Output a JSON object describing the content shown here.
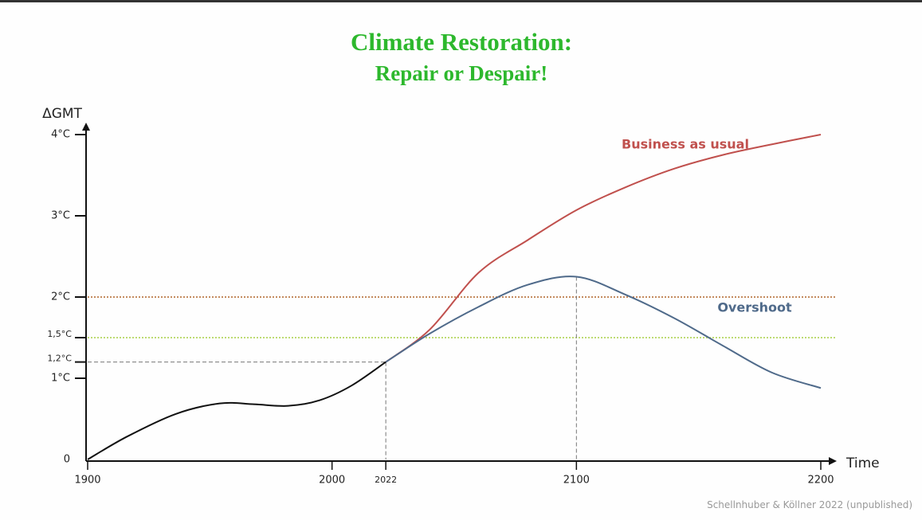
{
  "chart_data": {
    "type": "line",
    "title": "Climate Restoration:",
    "subtitle": "Repair or Despair!",
    "y_label": "ΔGMT",
    "x_label": "Time",
    "source": "Schellnhuber & Köllner 2022 (unpublished)",
    "xlim": [
      1900,
      2200
    ],
    "ylim": [
      0,
      4
    ],
    "xticks": [
      1900,
      2000,
      2022,
      2100,
      2200
    ],
    "yticks": [
      0,
      {
        "value": 1,
        "label": "1°C"
      },
      {
        "value": 1.2,
        "label": "1,2°C"
      },
      {
        "value": 1.5,
        "label": "1,5°C"
      },
      {
        "value": 2,
        "label": "2°C"
      },
      {
        "value": 3,
        "label": "3°C"
      },
      {
        "value": 4,
        "label": "4°C"
      }
    ],
    "reference_lines": [
      {
        "y": 2,
        "color": "#b0652a"
      },
      {
        "y": 1.5,
        "color": "#a8cf45"
      }
    ],
    "drop_lines": [
      {
        "x": 2022,
        "y": 1.2
      },
      {
        "x": 2100,
        "y": 2.25
      }
    ],
    "series": [
      {
        "color": "#111111",
        "x": [
          1900,
          1916,
          1936,
          1954,
          1968,
          1982,
          1995,
          2008,
          2022
        ],
        "values": [
          0,
          0.28,
          0.56,
          0.69,
          0.68,
          0.66,
          0.73,
          0.91,
          1.2
        ]
      },
      {
        "name": "Business as usual",
        "color": "#c0504d",
        "x": [
          2022,
          2040,
          2060,
          2080,
          2100,
          2120,
          2140,
          2160,
          2180,
          2200
        ],
        "values": [
          1.2,
          1.6,
          2.3,
          2.7,
          3.07,
          3.35,
          3.58,
          3.75,
          3.88,
          4.0
        ]
      },
      {
        "name": "Overshoot",
        "color": "#4f6a8a",
        "x": [
          2022,
          2040,
          2060,
          2080,
          2100,
          2120,
          2140,
          2160,
          2180,
          2200
        ],
        "values": [
          1.2,
          1.55,
          1.88,
          2.15,
          2.25,
          2.03,
          1.74,
          1.4,
          1.07,
          0.88
        ]
      }
    ]
  }
}
